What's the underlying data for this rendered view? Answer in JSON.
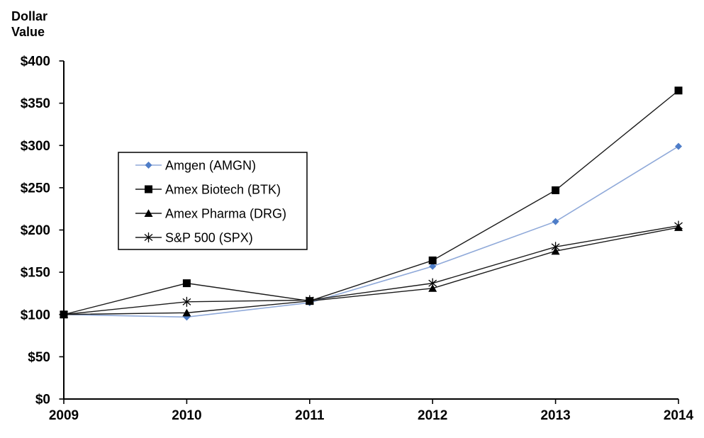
{
  "chart_data": {
    "type": "line",
    "title": "",
    "ylabel_lines": [
      "Dollar",
      "Value"
    ],
    "x": [
      "2009",
      "2010",
      "2011",
      "2012",
      "2013",
      "2014"
    ],
    "ylim": [
      0,
      400
    ],
    "ytick_values": [
      0,
      50,
      100,
      150,
      200,
      250,
      300,
      350,
      400
    ],
    "ytick_labels": [
      "$0",
      "$50",
      "$100",
      "$150",
      "$200",
      "$250",
      "$300",
      "$350",
      "$400"
    ],
    "grid": false,
    "legend_position": "upper-left-inside-box",
    "series": [
      {
        "name": "Amgen (AMGN)",
        "marker": "diamond",
        "line_color": "#8FA9D9",
        "marker_color": "#4E7DC8",
        "values": [
          100,
          97,
          114,
          157,
          210,
          299
        ]
      },
      {
        "name": "Amex Biotech (BTK)",
        "marker": "square",
        "line_color": "#1A1A1A",
        "marker_color": "#000000",
        "values": [
          100,
          137,
          116,
          164,
          247,
          365
        ]
      },
      {
        "name": "Amex Pharma (DRG)",
        "marker": "triangle",
        "line_color": "#1A1A1A",
        "marker_color": "#000000",
        "values": [
          100,
          102,
          116,
          131,
          175,
          203
        ]
      },
      {
        "name": "S&P 500 (SPX)",
        "marker": "asterisk",
        "line_color": "#1A1A1A",
        "marker_color": "#000000",
        "values": [
          100,
          115,
          117,
          137,
          180,
          205
        ]
      }
    ]
  }
}
